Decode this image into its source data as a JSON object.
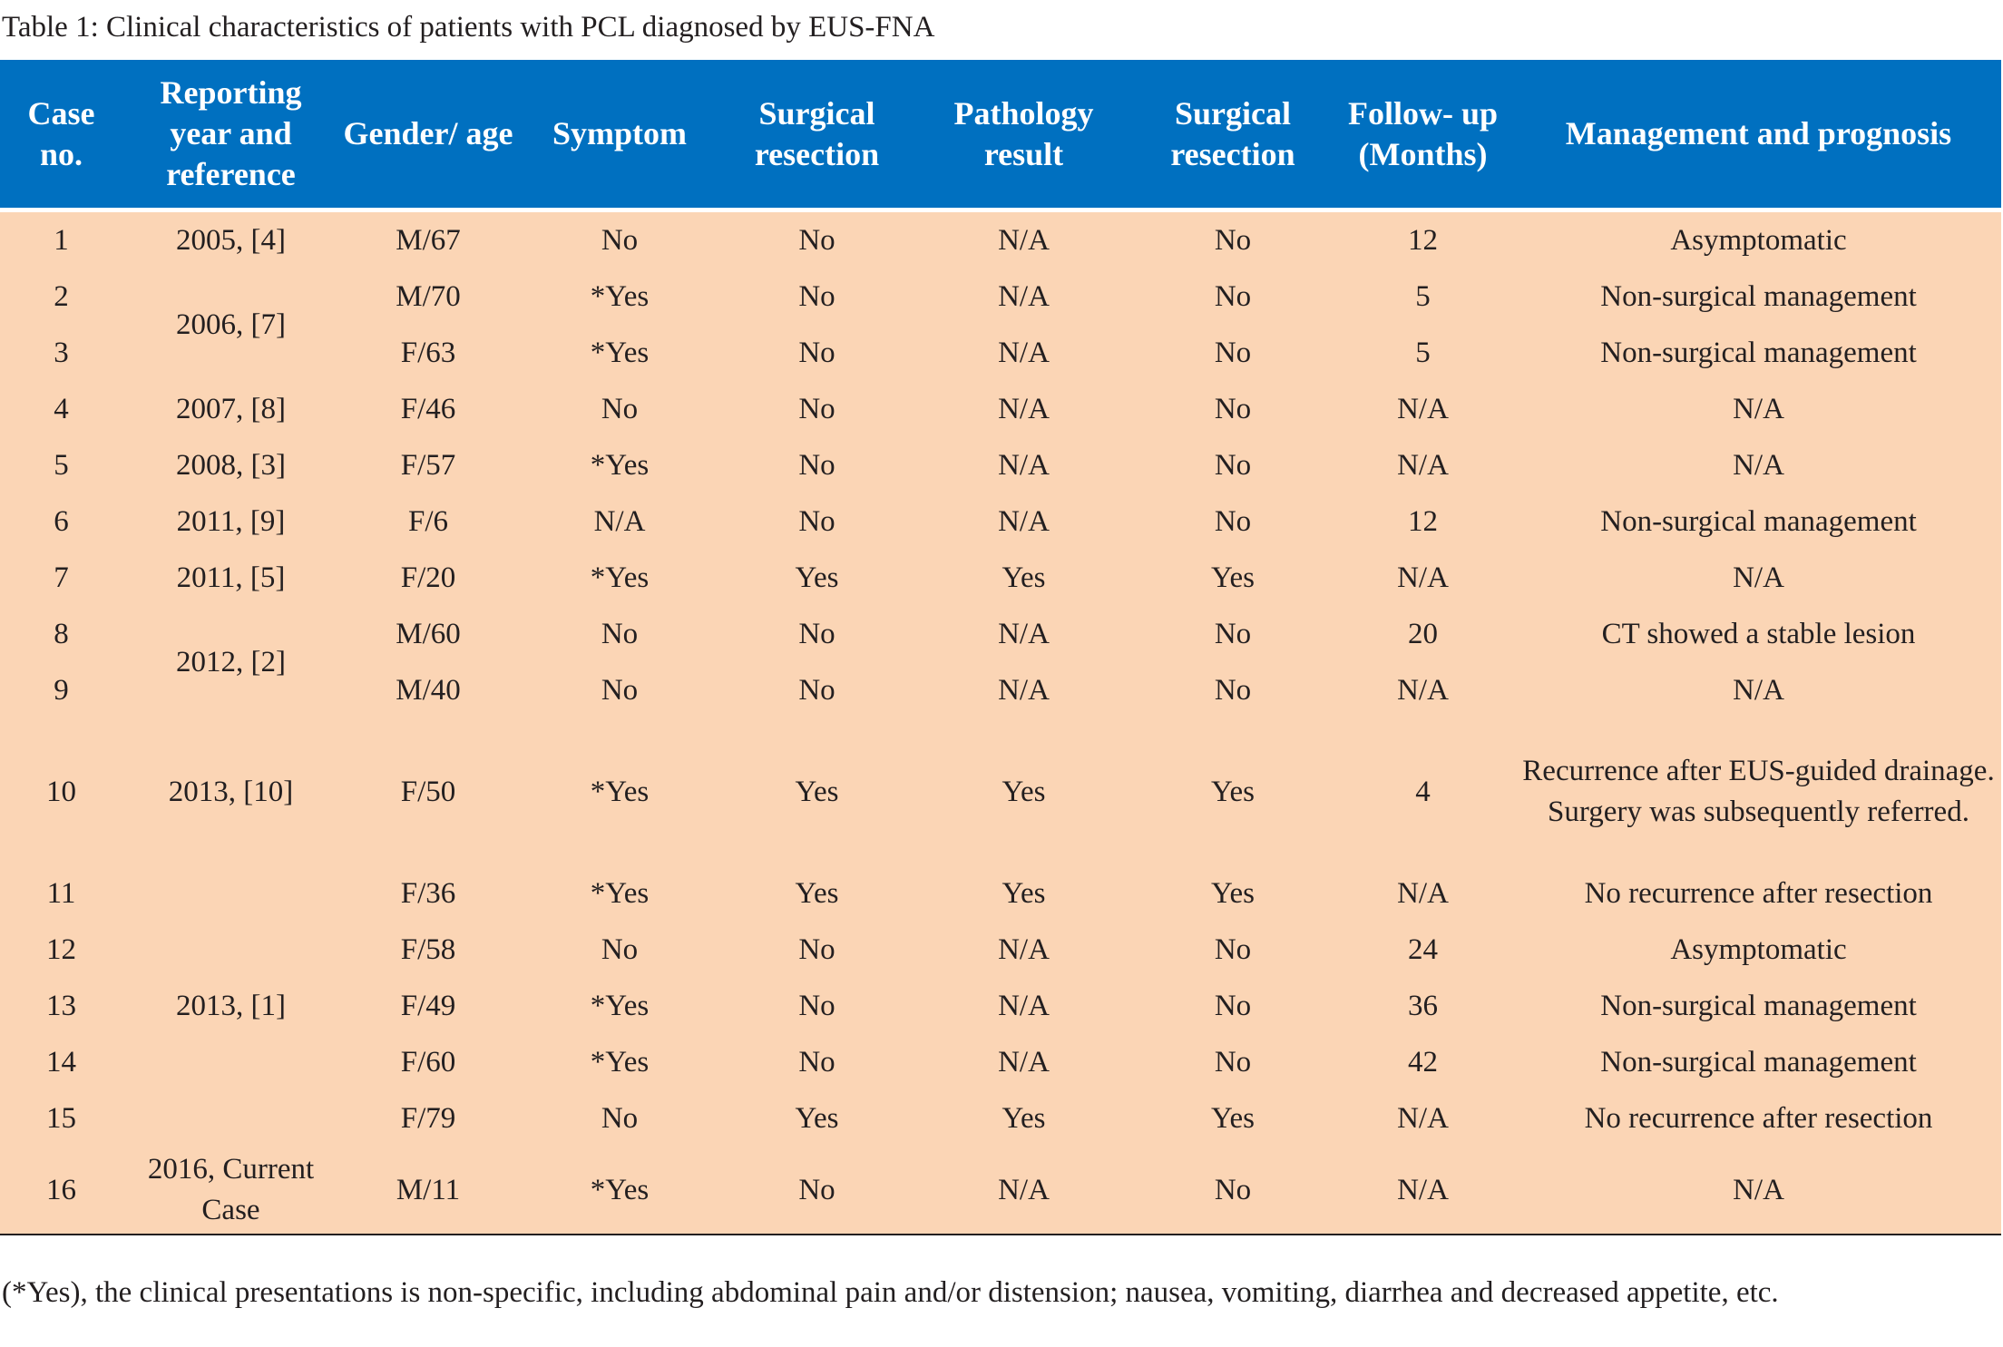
{
  "title": "Table 1: Clinical characteristics of patients with PCL diagnosed by EUS-FNA",
  "colors": {
    "header_bg": "#0070c0",
    "body_bg": "#fbd5b5"
  },
  "columns": [
    "Case no.",
    "Reporting year and reference",
    "Gender/ age",
    "Symptom",
    "Surgical resection",
    "Pathology result",
    "Surgical resection",
    "Follow- up (Months)",
    "Management and prognosis"
  ],
  "rows": [
    {
      "case": "1",
      "ref": "2005, [4]",
      "ref_span": 1,
      "gender_age": "M/67",
      "symptom": "No",
      "surgical1": "No",
      "pathology": "N/A",
      "surgical2": "No",
      "followup": "12",
      "management": "Asymptomatic"
    },
    {
      "case": "2",
      "ref": "2006, [7]",
      "ref_span": 2,
      "gender_age": "M/70",
      "symptom": "*Yes",
      "surgical1": "No",
      "pathology": "N/A",
      "surgical2": "No",
      "followup": "5",
      "management": "Non-surgical management"
    },
    {
      "case": "3",
      "ref": null,
      "ref_span": 0,
      "gender_age": "F/63",
      "symptom": "*Yes",
      "surgical1": "No",
      "pathology": "N/A",
      "surgical2": "No",
      "followup": "5",
      "management": "Non-surgical management"
    },
    {
      "case": "4",
      "ref": "2007, [8]",
      "ref_span": 1,
      "gender_age": "F/46",
      "symptom": "No",
      "surgical1": "No",
      "pathology": "N/A",
      "surgical2": "No",
      "followup": "N/A",
      "management": "N/A"
    },
    {
      "case": "5",
      "ref": "2008, [3]",
      "ref_span": 1,
      "gender_age": "F/57",
      "symptom": "*Yes",
      "surgical1": "No",
      "pathology": "N/A",
      "surgical2": "No",
      "followup": "N/A",
      "management": "N/A"
    },
    {
      "case": "6",
      "ref": "2011, [9]",
      "ref_span": 1,
      "gender_age": "F/6",
      "symptom": "N/A",
      "surgical1": "No",
      "pathology": "N/A",
      "surgical2": "No",
      "followup": "12",
      "management": "Non-surgical management"
    },
    {
      "case": "7",
      "ref": "2011, [5]",
      "ref_span": 1,
      "gender_age": "F/20",
      "symptom": "*Yes",
      "surgical1": "Yes",
      "pathology": "Yes",
      "surgical2": "Yes",
      "followup": "N/A",
      "management": "N/A"
    },
    {
      "case": "8",
      "ref": "2012, [2]",
      "ref_span": 2,
      "gender_age": "M/60",
      "symptom": "No",
      "surgical1": "No",
      "pathology": "N/A",
      "surgical2": "No",
      "followup": "20",
      "management": "CT showed a stable lesion"
    },
    {
      "case": "9",
      "ref": null,
      "ref_span": 0,
      "gender_age": "M/40",
      "symptom": "No",
      "surgical1": "No",
      "pathology": "N/A",
      "surgical2": "No",
      "followup": "N/A",
      "management": "N/A"
    },
    {
      "case": "10",
      "ref": "2013, [10]",
      "ref_span": 1,
      "gender_age": "F/50",
      "symptom": "*Yes",
      "surgical1": "Yes",
      "pathology": "Yes",
      "surgical2": "Yes",
      "followup": "4",
      "management": "Recurrence after EUS-guided drainage. Surgery was subsequently referred."
    },
    {
      "case": "11",
      "ref": "2013, [1]",
      "ref_span": 5,
      "gender_age": "F/36",
      "symptom": "*Yes",
      "surgical1": "Yes",
      "pathology": "Yes",
      "surgical2": "Yes",
      "followup": "N/A",
      "management": "No recurrence after resection"
    },
    {
      "case": "12",
      "ref": null,
      "ref_span": 0,
      "gender_age": "F/58",
      "symptom": "No",
      "surgical1": "No",
      "pathology": "N/A",
      "surgical2": "No",
      "followup": "24",
      "management": "Asymptomatic"
    },
    {
      "case": "13",
      "ref": null,
      "ref_span": 0,
      "gender_age": "F/49",
      "symptom": "*Yes",
      "surgical1": "No",
      "pathology": "N/A",
      "surgical2": "No",
      "followup": "36",
      "management": "Non-surgical management"
    },
    {
      "case": "14",
      "ref": null,
      "ref_span": 0,
      "gender_age": "F/60",
      "symptom": "*Yes",
      "surgical1": "No",
      "pathology": "N/A",
      "surgical2": "No",
      "followup": "42",
      "management": "Non-surgical management"
    },
    {
      "case": "15",
      "ref": null,
      "ref_span": 0,
      "gender_age": "F/79",
      "symptom": "No",
      "surgical1": "Yes",
      "pathology": "Yes",
      "surgical2": "Yes",
      "followup": "N/A",
      "management": "No recurrence after resection"
    },
    {
      "case": "16",
      "ref": "2016, Current Case",
      "ref_span": 1,
      "gender_age": "M/11",
      "symptom": "*Yes",
      "surgical1": "No",
      "pathology": "N/A",
      "surgical2": "No",
      "followup": "N/A",
      "management": "N/A"
    }
  ],
  "footnote": "(*Yes), the clinical presentations is non-specific, including abdominal pain and/or distension; nausea, vomiting, diarrhea and decreased appetite, etc."
}
